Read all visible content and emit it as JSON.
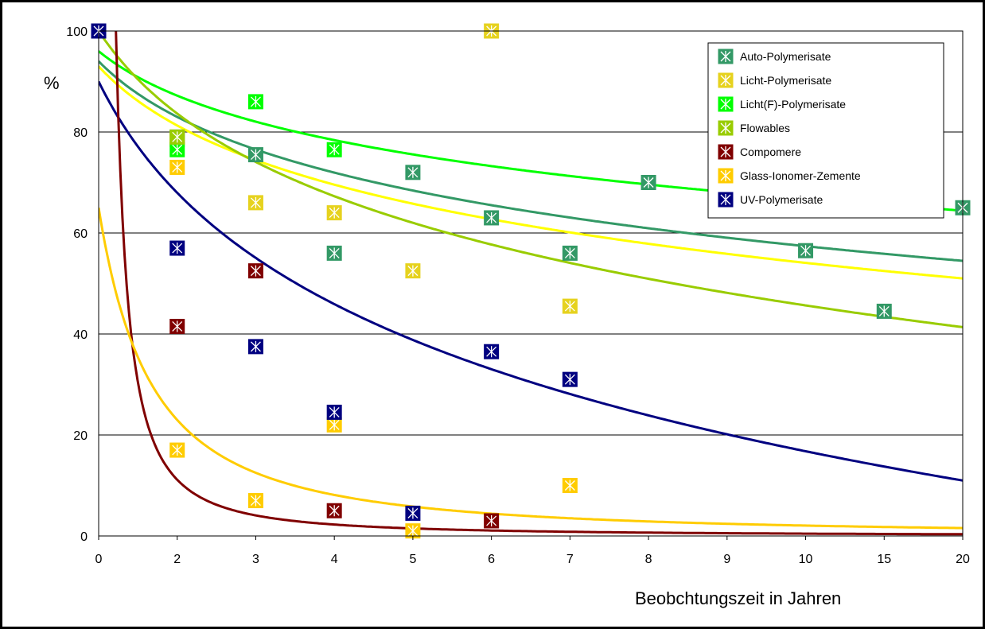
{
  "chart_data": {
    "type": "scatter",
    "title": "",
    "xlabel": "Beobchtungszeit in Jahren",
    "ylabel": "%",
    "x_categories": [
      "0",
      "2",
      "3",
      "4",
      "5",
      "6",
      "7",
      "8",
      "9",
      "10",
      "15",
      "20"
    ],
    "ylim": [
      0,
      100
    ],
    "y_ticks": [
      "0",
      "20",
      "40",
      "60",
      "80",
      "100"
    ],
    "grid": "horizontal",
    "legend_position": "top-right",
    "series": [
      {
        "name": "Auto-Polymerisate",
        "color": "#339966",
        "points": [
          [
            "2",
            79
          ],
          [
            "3",
            75.5
          ],
          [
            "4",
            56
          ],
          [
            "5",
            72
          ],
          [
            "6",
            63
          ],
          [
            "7",
            56
          ],
          [
            "8",
            70
          ],
          [
            "10",
            56.5
          ],
          [
            "15",
            44.5
          ],
          [
            "20",
            65
          ]
        ]
      },
      {
        "name": "Licht-Polymerisate",
        "color": "#e6d21e",
        "points": [
          [
            "2",
            78.5
          ],
          [
            "3",
            66
          ],
          [
            "4",
            64
          ],
          [
            "5",
            52.5
          ],
          [
            "6",
            100
          ],
          [
            "7",
            45.5
          ]
        ]
      },
      {
        "name": "Licht(F)-Polymerisate",
        "color": "#00ff00",
        "points": [
          [
            "0",
            100
          ],
          [
            "2",
            76.5
          ],
          [
            "3",
            86
          ],
          [
            "4",
            76.5
          ]
        ]
      },
      {
        "name": "Flowables",
        "color": "#99cc00",
        "points": [
          [
            "2",
            79
          ]
        ]
      },
      {
        "name": "Compomere",
        "color": "#800000",
        "points": [
          [
            "2",
            41.5
          ],
          [
            "3",
            52.5
          ],
          [
            "4",
            5
          ],
          [
            "6",
            3
          ]
        ]
      },
      {
        "name": "Glass-Ionomer-Zemente",
        "color": "#ffcc00",
        "points": [
          [
            "2",
            17
          ],
          [
            "2",
            73
          ],
          [
            "3",
            7
          ],
          [
            "4",
            22
          ],
          [
            "5",
            1
          ],
          [
            "7",
            10
          ]
        ]
      },
      {
        "name": "UV-Polymerisate",
        "color": "#000080",
        "points": [
          [
            "0",
            100
          ],
          [
            "2",
            57
          ],
          [
            "3",
            37.5
          ],
          [
            "4",
            24.5
          ],
          [
            "5",
            4.5
          ],
          [
            "6",
            36.5
          ],
          [
            "7",
            31
          ]
        ]
      }
    ],
    "trendlines": [
      {
        "series": "Licht(F)-Polymerisate",
        "color": "#00ff00",
        "type": "logarithmic"
      },
      {
        "series": "Auto-Polymerisate",
        "color": "#339966",
        "type": "logarithmic"
      },
      {
        "series": "Licht-Polymerisate",
        "color": "#ffff00",
        "type": "logarithmic"
      },
      {
        "series": "Flowables",
        "color": "#99cc00",
        "type": "logarithmic"
      },
      {
        "series": "UV-Polymerisate",
        "color": "#000080",
        "type": "logarithmic"
      },
      {
        "series": "Compomere",
        "color": "#800000",
        "type": "power"
      },
      {
        "series": "Glass-Ionomer-Zemente",
        "color": "#ffcc00",
        "type": "power"
      }
    ]
  }
}
